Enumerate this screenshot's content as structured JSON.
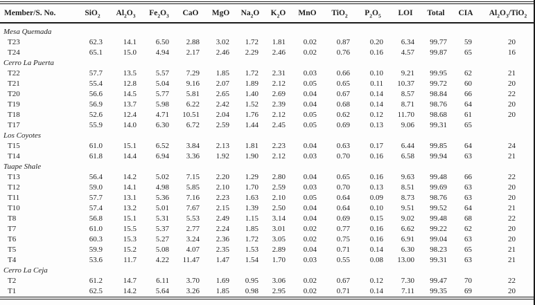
{
  "colors": {
    "background": "#fdfdfd",
    "text": "#1f1f1f",
    "rule": "#1a1a1a"
  },
  "table": {
    "columns": [
      {
        "name": "member-sno",
        "segments": [
          {
            "t": "Member/S. No."
          }
        ]
      },
      {
        "name": "sio2",
        "segments": [
          {
            "t": "SiO"
          },
          {
            "t": "2",
            "sub": true
          }
        ]
      },
      {
        "name": "al2o3",
        "segments": [
          {
            "t": "Al"
          },
          {
            "t": "2",
            "sub": true
          },
          {
            "t": "O"
          },
          {
            "t": "3",
            "sub": true
          }
        ]
      },
      {
        "name": "fe2o3",
        "segments": [
          {
            "t": "Fe"
          },
          {
            "t": "2",
            "sub": true
          },
          {
            "t": "O"
          },
          {
            "t": "3",
            "sub": true
          }
        ]
      },
      {
        "name": "cao",
        "segments": [
          {
            "t": "CaO"
          }
        ]
      },
      {
        "name": "mgo",
        "segments": [
          {
            "t": "MgO"
          }
        ]
      },
      {
        "name": "na2o",
        "segments": [
          {
            "t": "Na"
          },
          {
            "t": "2",
            "sub": true
          },
          {
            "t": "O"
          }
        ]
      },
      {
        "name": "k2o",
        "segments": [
          {
            "t": "K"
          },
          {
            "t": "2",
            "sub": true
          },
          {
            "t": "O"
          }
        ]
      },
      {
        "name": "mno",
        "segments": [
          {
            "t": "MnO"
          }
        ]
      },
      {
        "name": "tio2",
        "segments": [
          {
            "t": "TiO"
          },
          {
            "t": "2",
            "sub": true
          }
        ]
      },
      {
        "name": "p2o5",
        "segments": [
          {
            "t": "P"
          },
          {
            "t": "2",
            "sub": true
          },
          {
            "t": "O"
          },
          {
            "t": "5",
            "sub": true
          }
        ]
      },
      {
        "name": "loi",
        "segments": [
          {
            "t": "LOI"
          }
        ]
      },
      {
        "name": "total",
        "segments": [
          {
            "t": "Total"
          }
        ]
      },
      {
        "name": "cia",
        "segments": [
          {
            "t": "CIA"
          }
        ]
      },
      {
        "name": "al2o3-tio2",
        "segments": [
          {
            "t": "Al"
          },
          {
            "t": "2",
            "sub": true
          },
          {
            "t": "O"
          },
          {
            "t": "3",
            "sub": true
          },
          {
            "t": "/TiO"
          },
          {
            "t": "2",
            "sub": true
          }
        ]
      }
    ],
    "groups": [
      {
        "name": "Mesa Quemada",
        "rows": [
          {
            "id": "T23",
            "values": [
              "62.3",
              "14.1",
              "6.50",
              "2.88",
              "3.02",
              "1.72",
              "1.81",
              "0.02",
              "0.87",
              "0.20",
              "6.34",
              "99.77",
              "59",
              "20"
            ]
          },
          {
            "id": "T24",
            "values": [
              "65.1",
              "15.0",
              "4.94",
              "2.17",
              "2.46",
              "2.29",
              "2.46",
              "0.02",
              "0.76",
              "0.16",
              "4.57",
              "99.87",
              "65",
              "16"
            ]
          }
        ]
      },
      {
        "name": "Cerro La Puerta",
        "rows": [
          {
            "id": "T22",
            "values": [
              "57.7",
              "13.5",
              "5.57",
              "7.29",
              "1.85",
              "1.72",
              "2.31",
              "0.03",
              "0.66",
              "0.10",
              "9.21",
              "99.95",
              "62",
              "21"
            ]
          },
          {
            "id": "T21",
            "values": [
              "55.4",
              "12.8",
              "5.04",
              "9.16",
              "2.07",
              "1.89",
              "2.12",
              "0.05",
              "0.65",
              "0.11",
              "10.37",
              "99.72",
              "60",
              "20"
            ]
          },
          {
            "id": "T20",
            "values": [
              "56.6",
              "14.5",
              "5.77",
              "5.81",
              "2.65",
              "1.40",
              "2.69",
              "0.04",
              "0.67",
              "0.14",
              "8.57",
              "98.84",
              "66",
              "22"
            ]
          },
          {
            "id": "T19",
            "values": [
              "56.9",
              "13.7",
              "5.98",
              "6.22",
              "2.42",
              "1.52",
              "2.39",
              "0.04",
              "0.68",
              "0.14",
              "8.71",
              "98.76",
              "64",
              "20"
            ]
          },
          {
            "id": "T18",
            "values": [
              "52.6",
              "12.4",
              "4.71",
              "10.51",
              "2.04",
              "1.76",
              "2.12",
              "0.05",
              "0.62",
              "0.12",
              "11.70",
              "98.68",
              "61",
              "20"
            ]
          },
          {
            "id": "T17",
            "values": [
              "55.9",
              "14.0",
              "6.30",
              "6.72",
              "2.59",
              "1.44",
              "2.45",
              "0.05",
              "0.69",
              "0.13",
              "9.06",
              "99.31",
              "65",
              ""
            ]
          }
        ]
      },
      {
        "name": "Los Coyotes",
        "rows": [
          {
            "id": "T15",
            "values": [
              "61.0",
              "15.1",
              "6.52",
              "3.84",
              "2.13",
              "1.81",
              "2.23",
              "0.04",
              "0.63",
              "0.17",
              "6.44",
              "99.85",
              "64",
              "24"
            ]
          },
          {
            "id": "T14",
            "values": [
              "61.8",
              "14.4",
              "6.94",
              "3.36",
              "1.92",
              "1.90",
              "2.12",
              "0.03",
              "0.70",
              "0.16",
              "6.58",
              "99.94",
              "63",
              "21"
            ]
          }
        ]
      },
      {
        "name": "Tuape Shale",
        "rows": [
          {
            "id": "T13",
            "values": [
              "56.4",
              "14.2",
              "5.02",
              "7.15",
              "2.20",
              "1.29",
              "2.80",
              "0.04",
              "0.65",
              "0.16",
              "9.63",
              "99.48",
              "66",
              "22"
            ]
          },
          {
            "id": "T12",
            "values": [
              "59.0",
              "14.1",
              "4.98",
              "5.85",
              "2.10",
              "1.70",
              "2.59",
              "0.03",
              "0.70",
              "0.13",
              "8.51",
              "99.69",
              "63",
              "20"
            ]
          },
          {
            "id": "T11",
            "values": [
              "57.7",
              "13.1",
              "5.36",
              "7.16",
              "2.23",
              "1.63",
              "2.10",
              "0.05",
              "0.64",
              "0.09",
              "8.73",
              "98.76",
              "63",
              "20"
            ]
          },
          {
            "id": "T10",
            "values": [
              "57.4",
              "13.2",
              "5.01",
              "7.67",
              "2.15",
              "1.39",
              "2.50",
              "0.04",
              "0.64",
              "0.10",
              "9.51",
              "99.52",
              "64",
              "21"
            ]
          },
          {
            "id": "T8",
            "values": [
              "56.8",
              "15.1",
              "5.31",
              "5.53",
              "2.49",
              "1.15",
              "3.14",
              "0.04",
              "0.69",
              "0.15",
              "9.02",
              "99.48",
              "68",
              "22"
            ]
          },
          {
            "id": "T7",
            "values": [
              "61.0",
              "15.5",
              "5.37",
              "2.77",
              "2.24",
              "1.85",
              "3.01",
              "0.02",
              "0.77",
              "0.16",
              "6.62",
              "99.22",
              "62",
              "20"
            ]
          },
          {
            "id": "T6",
            "values": [
              "60.3",
              "15.3",
              "5.27",
              "3.24",
              "2.36",
              "1.72",
              "3.05",
              "0.02",
              "0.75",
              "0.16",
              "6.91",
              "99.04",
              "63",
              "20"
            ]
          },
          {
            "id": "T5",
            "values": [
              "59.9",
              "15.2",
              "5.08",
              "4.07",
              "2.35",
              "1.53",
              "2.89",
              "0.04",
              "0.71",
              "0.14",
              "6.30",
              "98.23",
              "65",
              "21"
            ]
          },
          {
            "id": "T4",
            "values": [
              "53.6",
              "11.7",
              "4.22",
              "11.47",
              "1.47",
              "1.54",
              "1.70",
              "0.03",
              "0.55",
              "0.08",
              "13.00",
              "99.31",
              "63",
              "21"
            ]
          }
        ]
      },
      {
        "name": "Cerro La Ceja",
        "rows": [
          {
            "id": "T2",
            "values": [
              "61.2",
              "14.7",
              "6.11",
              "3.70",
              "1.69",
              "0.95",
              "3.06",
              "0.02",
              "0.67",
              "0.12",
              "7.30",
              "99.47",
              "70",
              "22"
            ]
          },
          {
            "id": "T1",
            "values": [
              "62.5",
              "14.2",
              "5.64",
              "3.26",
              "1.85",
              "0.98",
              "2.95",
              "0.02",
              "0.71",
              "0.14",
              "7.11",
              "99.35",
              "69",
              "20"
            ]
          }
        ]
      }
    ]
  }
}
